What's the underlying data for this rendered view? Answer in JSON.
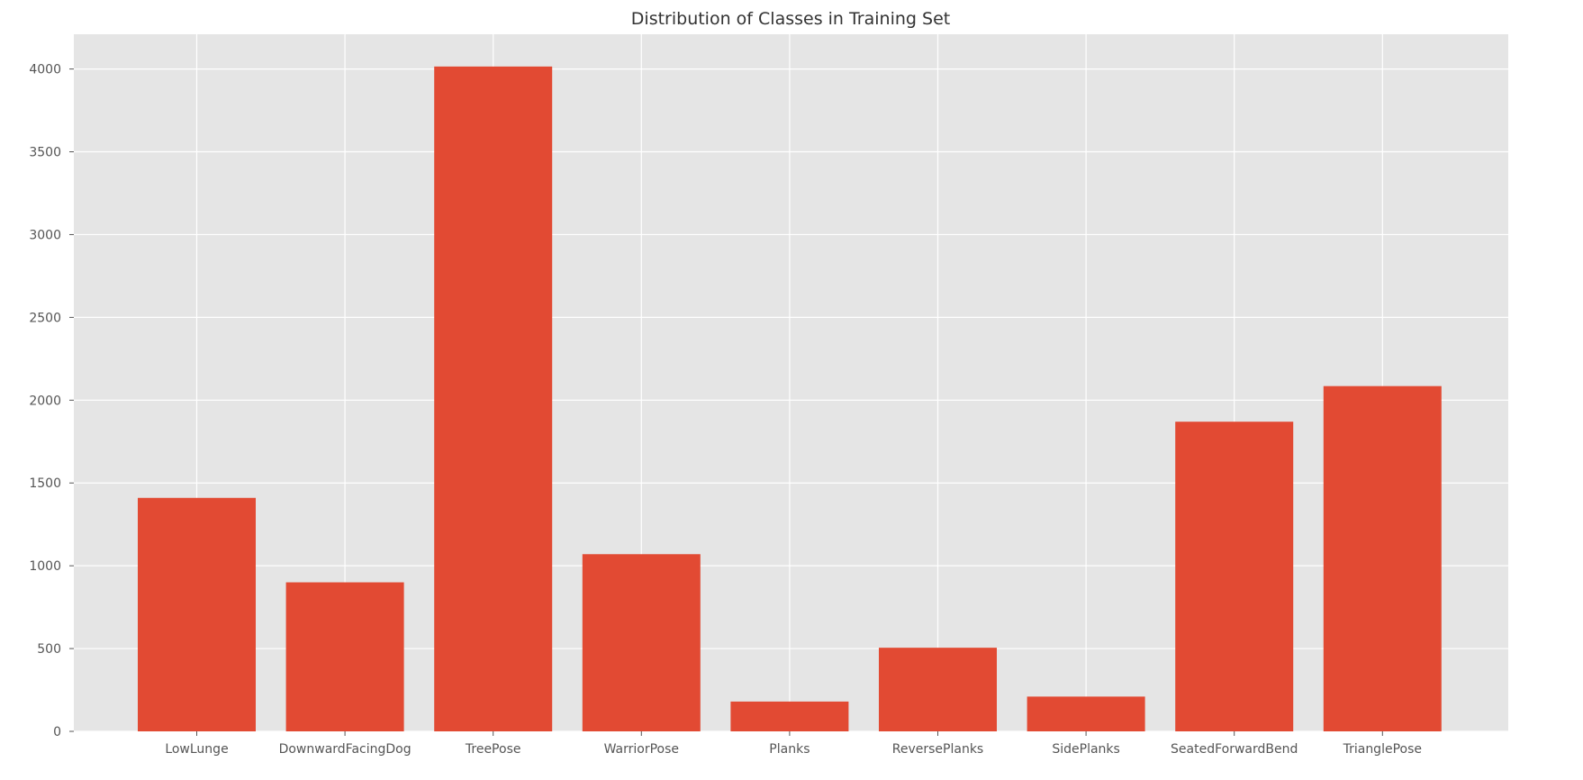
{
  "chart_data": {
    "type": "bar",
    "title": "Distribution of Classes in Training Set",
    "xlabel": "",
    "ylabel": "",
    "categories": [
      "LowLunge",
      "DownwardFacingDog",
      "TreePose",
      "WarriorPose",
      "Planks",
      "ReversePlanks",
      "SidePlanks",
      "SeatedForwardBend",
      "TrianglePose"
    ],
    "values": [
      1410,
      900,
      4015,
      1070,
      180,
      505,
      210,
      1870,
      2085
    ],
    "ylim": [
      0,
      4210
    ],
    "yticks": [
      0,
      500,
      1000,
      1500,
      2000,
      2500,
      3000,
      3500,
      4000
    ],
    "grid": true,
    "style": "ggplot",
    "colors": {
      "bar": "#E24A33",
      "panel": "#E5E5E5",
      "grid": "#FFFFFF",
      "text": "#555555"
    }
  }
}
